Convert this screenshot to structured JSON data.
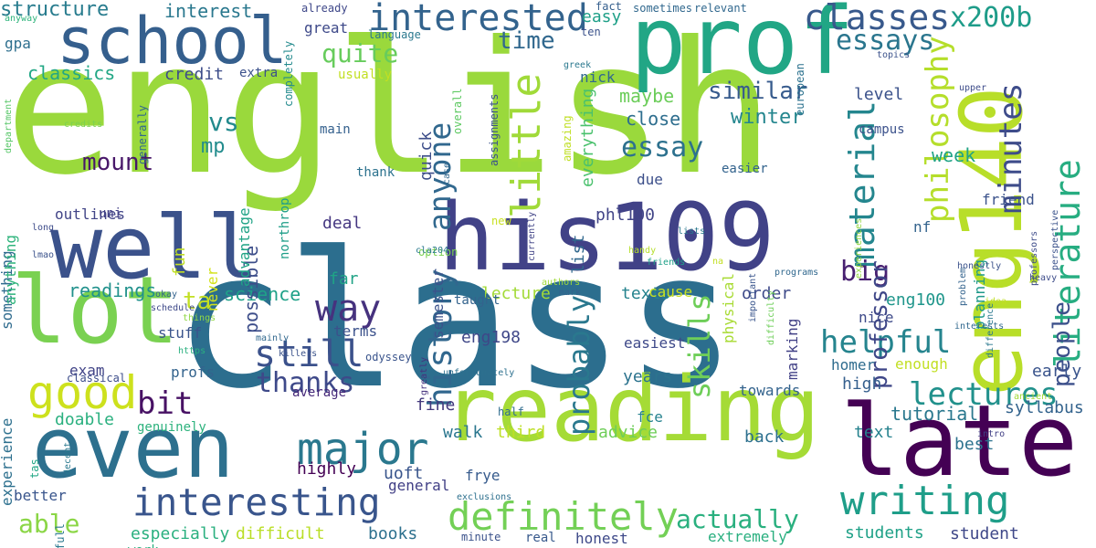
{
  "words": [
    {
      "text": "english",
      "color": "#9ad93c",
      "rot": 0
    },
    {
      "text": "class",
      "color": "#2c6e8e",
      "rot": 0
    },
    {
      "text": "his109",
      "color": "#414287",
      "rot": 0
    },
    {
      "text": "well",
      "color": "#3b528b",
      "rot": 0
    },
    {
      "text": "lot",
      "color": "#7ad151",
      "rot": 0
    },
    {
      "text": "prof",
      "color": "#21a685",
      "rot": 0
    },
    {
      "text": "school",
      "color": "#355f8d",
      "rot": 0
    },
    {
      "text": "even",
      "color": "#2d708e",
      "rot": 0
    },
    {
      "text": "reading",
      "color": "#a5db36",
      "rot": 0
    },
    {
      "text": "late",
      "color": "#440154",
      "rot": 0
    },
    {
      "text": "eng140",
      "color": "#b8de29",
      "rot": -90
    },
    {
      "text": "interesting",
      "color": "#39558c",
      "rot": 0
    },
    {
      "text": "writing",
      "color": "#1f9e89",
      "rot": 0
    },
    {
      "text": "good",
      "color": "#cde11d",
      "rot": 0
    },
    {
      "text": "major",
      "color": "#2a788e",
      "rot": 0
    },
    {
      "text": "definitely",
      "color": "#73d056",
      "rot": 0
    },
    {
      "text": "interested",
      "color": "#33638d",
      "rot": 0
    },
    {
      "text": "classes",
      "color": "#38598c",
      "rot": 0
    },
    {
      "text": "essays",
      "color": "#2a768e",
      "rot": 0
    },
    {
      "text": "x200b",
      "color": "#1e9c89",
      "rot": 0
    },
    {
      "text": "way",
      "color": "#46327e",
      "rot": 0
    },
    {
      "text": "still",
      "color": "#3b518b",
      "rot": 0
    },
    {
      "text": "helpful",
      "color": "#25848e",
      "rot": 0
    },
    {
      "text": "lectures",
      "color": "#21918c",
      "rot": 0
    },
    {
      "text": "thanks",
      "color": "#3e4989",
      "rot": 0
    },
    {
      "text": "bit",
      "color": "#471164",
      "rot": 0
    },
    {
      "text": "anyone",
      "color": "#31688e",
      "rot": -90
    },
    {
      "text": "history",
      "color": "#31678e",
      "rot": -90
    },
    {
      "text": "little",
      "color": "#a0da39",
      "rot": -90
    },
    {
      "text": "material",
      "color": "#24868e",
      "rot": -90
    },
    {
      "text": "minutes",
      "color": "#3e4c8a",
      "rot": -90
    },
    {
      "text": "literature",
      "color": "#27ad81",
      "rot": -90
    },
    {
      "text": "philosophy",
      "color": "#b5de2b",
      "rot": -90
    },
    {
      "text": "probably",
      "color": "#2a788e",
      "rot": -90
    },
    {
      "text": "quite",
      "color": "#67cc5c",
      "rot": 0
    },
    {
      "text": "similar",
      "color": "#375b8d",
      "rot": 0
    },
    {
      "text": "time",
      "color": "#31688e",
      "rot": 0
    },
    {
      "text": "essay",
      "color": "#2d718e",
      "rot": 0
    },
    {
      "text": "mount",
      "color": "#481769",
      "rot": 0
    },
    {
      "text": "vs",
      "color": "#238a8d",
      "rot": 0
    },
    {
      "text": "mp",
      "color": "#228c8d",
      "rot": 0
    },
    {
      "text": "ta",
      "color": "#c2df23",
      "rot": 0
    },
    {
      "text": "big",
      "color": "#482071",
      "rot": 0
    },
    {
      "text": "people",
      "color": "#3c508b",
      "rot": -90
    },
    {
      "text": "skills",
      "color": "#6ece58",
      "rot": -90
    },
    {
      "text": "actually",
      "color": "#2ab07f",
      "rot": 0
    },
    {
      "text": "able",
      "color": "#8bd646",
      "rot": 0
    },
    {
      "text": "professor",
      "color": "#3f4788",
      "rot": -90
    },
    {
      "text": "classics",
      "color": "#22a785",
      "rot": 0
    },
    {
      "text": "structure",
      "color": "#287c8e",
      "rot": 0
    },
    {
      "text": "interest",
      "color": "#2a788e",
      "rot": 0
    },
    {
      "text": "credit",
      "color": "#3d4d8a",
      "rot": 0
    },
    {
      "text": "maybe",
      "color": "#6ccd5a",
      "rot": 0
    },
    {
      "text": "close",
      "color": "#2e6e8e",
      "rot": 0
    },
    {
      "text": "winter",
      "color": "#24868e",
      "rot": 0
    },
    {
      "text": "week",
      "color": "#20a386",
      "rot": 0
    },
    {
      "text": "level",
      "color": "#3b528b",
      "rot": 0
    },
    {
      "text": "easy",
      "color": "#1fa088",
      "rot": 0
    },
    {
      "text": "great",
      "color": "#3e4989",
      "rot": 0
    },
    {
      "text": "gpa",
      "color": "#2e6f8e",
      "rot": 0
    },
    {
      "text": "readings",
      "color": "#21918c",
      "rot": 0
    },
    {
      "text": "science",
      "color": "#1fa188",
      "rot": 0
    },
    {
      "text": "outlines",
      "color": "#414487",
      "rot": 0
    },
    {
      "text": "fun",
      "color": "#c0df25",
      "rot": -90
    },
    {
      "text": "possible",
      "color": "#3d4e8a",
      "rot": -90
    },
    {
      "text": "exam",
      "color": "#414487",
      "rot": 0
    },
    {
      "text": "something",
      "color": "#2f6b8e",
      "rot": -90
    },
    {
      "text": "anything",
      "color": "#2fb47c",
      "rot": -90
    },
    {
      "text": "best",
      "color": "#2c728e",
      "rot": 0
    },
    {
      "text": "experience",
      "color": "#2d708e",
      "rot": -90
    },
    {
      "text": "better",
      "color": "#39558c",
      "rot": 0
    },
    {
      "text": "deal",
      "color": "#453781",
      "rot": 0
    },
    {
      "text": "semester",
      "color": "#3b528b",
      "rot": -90
    },
    {
      "text": "far",
      "color": "#20a386",
      "rot": 0
    },
    {
      "text": "terms",
      "color": "#3b518b",
      "rot": 0
    },
    {
      "text": "stuff",
      "color": "#3a548c",
      "rot": 0
    },
    {
      "text": "profs",
      "color": "#33638d",
      "rot": 0
    },
    {
      "text": "fine",
      "color": "#44397d",
      "rot": 0
    },
    {
      "text": "doable",
      "color": "#2ab07f",
      "rot": 0
    },
    {
      "text": "highly",
      "color": "#440154",
      "rot": 0
    },
    {
      "text": "walk",
      "color": "#2a768e",
      "rot": 0
    },
    {
      "text": "third",
      "color": "#bddf26",
      "rot": 0
    },
    {
      "text": "advice",
      "color": "#6ece58",
      "rot": 0
    },
    {
      "text": "years",
      "color": "#2c738e",
      "rot": 0
    },
    {
      "text": "lecture",
      "color": "#a2da37",
      "rot": 0
    },
    {
      "text": "texts",
      "color": "#25838e",
      "rot": 0
    },
    {
      "text": "order",
      "color": "#3e4a89",
      "rot": 0
    },
    {
      "text": "eng100",
      "color": "#1f968b",
      "rot": 0
    },
    {
      "text": "phl100",
      "color": "#414487",
      "rot": 0
    },
    {
      "text": "eng198",
      "color": "#3f4788",
      "rot": 0
    },
    {
      "text": "list",
      "color": "#31688e",
      "rot": -90
    },
    {
      "text": "everything",
      "color": "#4ac16d",
      "rot": -90
    },
    {
      "text": "quick",
      "color": "#3d4e8a",
      "rot": -90
    },
    {
      "text": "due",
      "color": "#3c4f8a",
      "rot": 0
    },
    {
      "text": "nick",
      "color": "#31688e",
      "rot": 0
    },
    {
      "text": "tutorial",
      "color": "#2a788e",
      "rot": 0
    },
    {
      "text": "text",
      "color": "#26828e",
      "rot": 0
    },
    {
      "text": "high",
      "color": "#355f8d",
      "rot": 0
    },
    {
      "text": "early",
      "color": "#3a548c",
      "rot": 0
    },
    {
      "text": "syllabus",
      "color": "#33638d",
      "rot": 0
    },
    {
      "text": "back",
      "color": "#2d708e",
      "rot": 0
    },
    {
      "text": "homer",
      "color": "#2f6c8e",
      "rot": 0
    },
    {
      "text": "enough",
      "color": "#c2df23",
      "rot": 0
    },
    {
      "text": "friend",
      "color": "#3b528b",
      "rot": 0
    },
    {
      "text": "nf",
      "color": "#33638d",
      "rot": 0
    },
    {
      "text": "nice",
      "color": "#3e4a89",
      "rot": 0
    },
    {
      "text": "students",
      "color": "#1fa187",
      "rot": 0
    },
    {
      "text": "student",
      "color": "#3f4889",
      "rot": 0
    },
    {
      "text": "uoft",
      "color": "#39558c",
      "rot": 0
    },
    {
      "text": "general",
      "color": "#424086",
      "rot": 0
    },
    {
      "text": "frye",
      "color": "#375b8d",
      "rot": 0
    },
    {
      "text": "fce",
      "color": "#26828e",
      "rot": 0
    },
    {
      "text": "towards",
      "color": "#33638d",
      "rot": 0
    },
    {
      "text": "books",
      "color": "#2d708e",
      "rot": 0
    },
    {
      "text": "difficult",
      "color": "#bade28",
      "rot": 0
    },
    {
      "text": "especially",
      "color": "#2ab07f",
      "rot": 0
    },
    {
      "text": "honest",
      "color": "#3e4989",
      "rot": 0
    },
    {
      "text": "minute",
      "color": "#3b528b",
      "rot": 0
    },
    {
      "text": "real",
      "color": "#38598c",
      "rot": 0
    },
    {
      "text": "extremely",
      "color": "#29af7f",
      "rot": 0
    },
    {
      "text": "physical",
      "color": "#a8db34",
      "rot": -90
    },
    {
      "text": "marking",
      "color": "#424186",
      "rot": -90
    },
    {
      "text": "planning",
      "color": "#1f998a",
      "rot": -90
    },
    {
      "text": "campus",
      "color": "#3b518b",
      "rot": 0
    },
    {
      "text": "easier",
      "color": "#33638d",
      "rot": 0
    },
    {
      "text": "easiest",
      "color": "#3e4989",
      "rot": 0
    },
    {
      "text": "cause",
      "color": "#c8e020",
      "rot": 0
    },
    {
      "text": "never",
      "color": "#d2e21b",
      "rot": -90
    },
    {
      "text": "advantage",
      "color": "#20a386",
      "rot": -90
    },
    {
      "text": "average",
      "color": "#472a7a",
      "rot": 0
    },
    {
      "text": "thank",
      "color": "#2c728e",
      "rot": 0
    },
    {
      "text": "main",
      "color": "#34608d",
      "rot": 0
    },
    {
      "text": "usually",
      "color": "#c2df23",
      "rot": 0
    },
    {
      "text": "language",
      "color": "#2a788e",
      "rot": 0
    },
    {
      "text": "already",
      "color": "#3f4889",
      "rot": 0
    },
    {
      "text": "sometimes",
      "color": "#31688e",
      "rot": 0
    },
    {
      "text": "relevant",
      "color": "#31688e",
      "rot": 0
    },
    {
      "text": "ten",
      "color": "#3b528b",
      "rot": 0
    },
    {
      "text": "fact",
      "color": "#355f8d",
      "rot": 0
    },
    {
      "text": "greek",
      "color": "#2a788e",
      "rot": 0
    },
    {
      "text": "topics",
      "color": "#3b528b",
      "rot": 0
    },
    {
      "text": "upper",
      "color": "#3e4c8a",
      "rot": 0
    },
    {
      "text": "extra",
      "color": "#3b518b",
      "rot": 0
    },
    {
      "text": "anyway",
      "color": "#2fb47c",
      "rot": 0
    },
    {
      "text": "department",
      "color": "#56c667",
      "rot": -90
    },
    {
      "text": "credits",
      "color": "#7ad151",
      "rot": 0
    },
    {
      "text": "generally",
      "color": "#31688e",
      "rot": -90
    },
    {
      "text": "completely",
      "color": "#238a8d",
      "rot": -90
    },
    {
      "text": "overall",
      "color": "#5ec962",
      "rot": -90
    },
    {
      "text": "assignments",
      "color": "#3b528b",
      "rot": -90
    },
    {
      "text": "amazing",
      "color": "#c0df25",
      "rot": -90
    },
    {
      "text": "european",
      "color": "#2c728e",
      "rot": -90
    },
    {
      "text": "uni",
      "color": "#424086",
      "rot": 0
    },
    {
      "text": "long",
      "color": "#3e4c8a",
      "rot": 0
    },
    {
      "text": "lmao",
      "color": "#3b528b",
      "rot": 0
    },
    {
      "text": "okay",
      "color": "#33638d",
      "rot": 0
    },
    {
      "text": "schedule",
      "color": "#3e4989",
      "rot": 0
    },
    {
      "text": "things",
      "color": "#8fd744",
      "rot": 0
    },
    {
      "text": "https",
      "color": "#2ab07f",
      "rot": 0
    },
    {
      "text": "mainly",
      "color": "#31688e",
      "rot": 0
    },
    {
      "text": "killers",
      "color": "#3b528b",
      "rot": 0
    },
    {
      "text": "northrop",
      "color": "#1f9e89",
      "rot": -90
    },
    {
      "text": "classical",
      "color": "#3d4d8a",
      "rot": 0
    },
    {
      "text": "odyssey",
      "color": "#3a548c",
      "rot": 0
    },
    {
      "text": "greatly",
      "color": "#46327e",
      "rot": -90
    },
    {
      "text": "genuinely",
      "color": "#2db27d",
      "rot": 0
    },
    {
      "text": "unfortunately",
      "color": "#2d708e",
      "rot": 0
    },
    {
      "text": "half",
      "color": "#2f6c8e",
      "rot": 0
    },
    {
      "text": "tas",
      "color": "#22a785",
      "rot": -90
    },
    {
      "text": "decent",
      "color": "#2a788e",
      "rot": -90
    },
    {
      "text": "work",
      "color": "#29af7f",
      "rot": 0
    },
    {
      "text": "full",
      "color": "#2a788e",
      "rot": -90
    },
    {
      "text": "exclusions",
      "color": "#2d708e",
      "rot": 0
    },
    {
      "text": "option",
      "color": "#7ad151",
      "rot": 0
    },
    {
      "text": "cla204",
      "color": "#2a788e",
      "rot": 0
    },
    {
      "text": "case",
      "color": "#31688e",
      "rot": -90
    },
    {
      "text": "new",
      "color": "#c8e020",
      "rot": 0
    },
    {
      "text": "taught",
      "color": "#33638d",
      "rot": 0
    },
    {
      "text": "currently",
      "color": "#414487",
      "rot": -90
    },
    {
      "text": "authors",
      "color": "#a0da39",
      "rot": 0
    },
    {
      "text": "mark",
      "color": "#33638d",
      "rot": 0
    },
    {
      "text": "handy",
      "color": "#b5de2b",
      "rot": 0
    },
    {
      "text": "friends",
      "color": "#1fa088",
      "rot": 0
    },
    {
      "text": "lists",
      "color": "#2a788e",
      "rot": 0
    },
    {
      "text": "na",
      "color": "#c2df23",
      "rot": 0
    },
    {
      "text": "important",
      "color": "#39558c",
      "rot": -90
    },
    {
      "text": "difficulty",
      "color": "#6ece58",
      "rot": -90
    },
    {
      "text": "programs",
      "color": "#31688e",
      "rot": 0
    },
    {
      "text": "experiences",
      "color": "#95d840",
      "rot": -90
    },
    {
      "text": "honestly",
      "color": "#3b528b",
      "rot": 0
    },
    {
      "text": "heavy",
      "color": "#3e4c8a",
      "rot": 0
    },
    {
      "text": "problem",
      "color": "#33638d",
      "rot": -90
    },
    {
      "text": "idea",
      "color": "#c0df25",
      "rot": 0
    },
    {
      "text": "interests",
      "color": "#31688e",
      "rot": 0
    },
    {
      "text": "professors",
      "color": "#3e4c8a",
      "rot": -90
    },
    {
      "text": "perspective",
      "color": "#3b528b",
      "rot": -90
    },
    {
      "text": "difference",
      "color": "#2a788e",
      "rot": -90
    },
    {
      "text": "ancient",
      "color": "#a2da37",
      "rot": 0
    },
    {
      "text": "intro",
      "color": "#424086",
      "rot": 0
    }
  ]
}
